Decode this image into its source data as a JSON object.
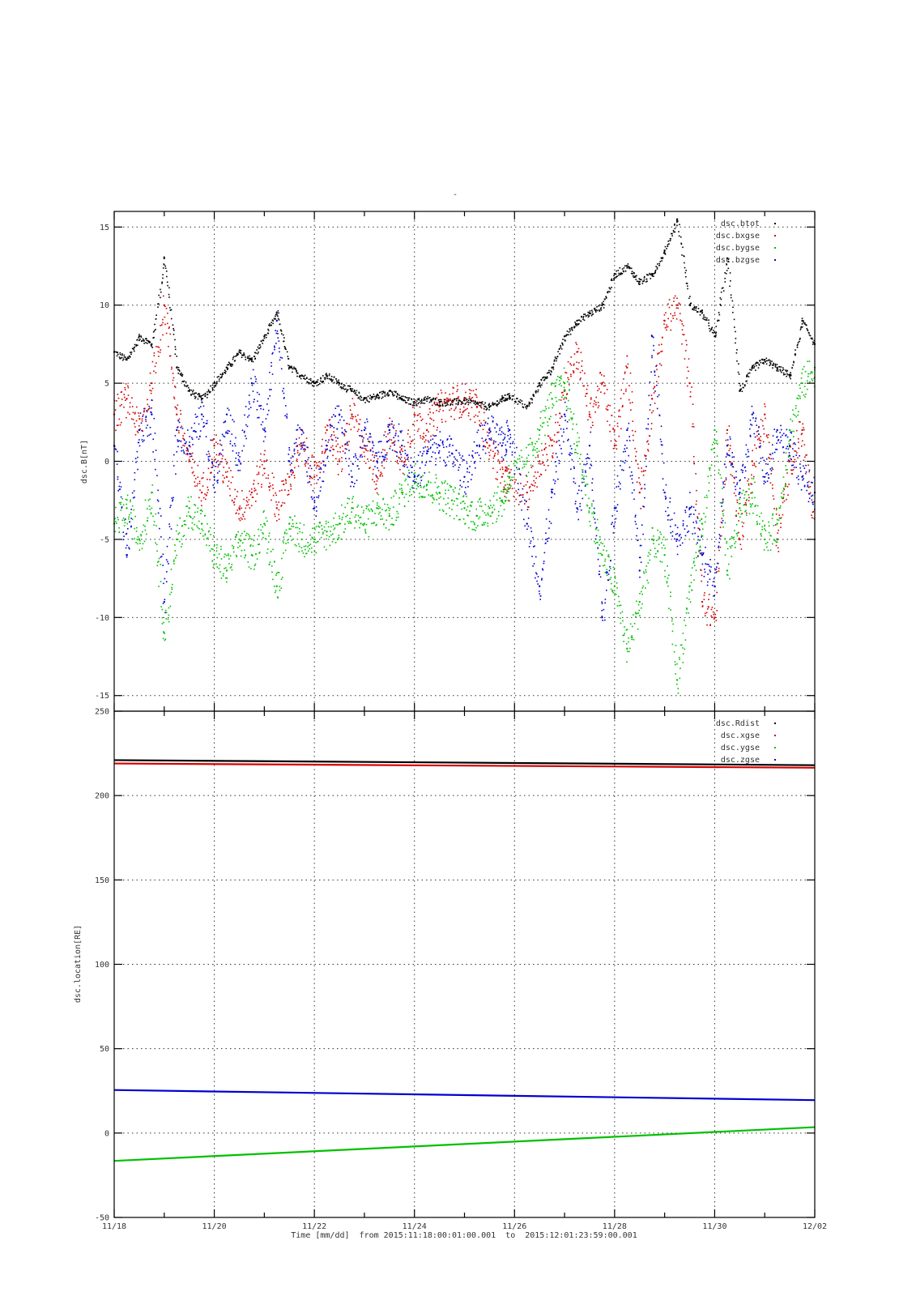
{
  "top_mark": "-",
  "chart_data": [
    {
      "type": "scatter",
      "title": "",
      "xlabel": "",
      "ylabel": "dsc.B[nT]",
      "xlim": [
        0,
        14
      ],
      "ylim": [
        -16,
        16
      ],
      "yticks": [
        15,
        10,
        5,
        0,
        -5,
        -10,
        -15
      ],
      "grid": true,
      "legend_position": "top-right",
      "series": [
        {
          "name": "dsc.btot",
          "color": "#000000",
          "x": [
            0,
            0.25,
            0.5,
            0.75,
            1.0,
            1.25,
            1.5,
            1.75,
            2.0,
            2.25,
            2.5,
            2.75,
            3.0,
            3.25,
            3.5,
            3.75,
            4.0,
            4.25,
            4.5,
            4.75,
            5.0,
            5.25,
            5.5,
            5.75,
            6.0,
            6.25,
            6.5,
            6.75,
            7.0,
            7.25,
            7.5,
            7.75,
            7.9,
            8.25,
            8.5,
            8.75,
            9.0,
            9.25,
            9.5,
            9.75,
            10.0,
            10.25,
            10.5,
            10.75,
            11.0,
            11.25,
            11.5,
            11.75,
            12.0,
            12.25,
            12.5,
            12.75,
            13.0,
            13.25,
            13.5,
            13.75,
            14.0
          ],
          "y": [
            7,
            6.5,
            8,
            7.5,
            13,
            6,
            4.5,
            4,
            5,
            6,
            7,
            6.5,
            8,
            9.5,
            6,
            5.5,
            5,
            5.5,
            5,
            4.5,
            4,
            4.2,
            4.5,
            4,
            3.8,
            4,
            3.8,
            3.8,
            3.9,
            3.7,
            3.5,
            4,
            4.2,
            3.5,
            5,
            6,
            8,
            9,
            9.5,
            10,
            12,
            12.5,
            11.5,
            12,
            13.5,
            15.5,
            10,
            9.5,
            8,
            13,
            4.5,
            6,
            6.5,
            6,
            5.5,
            9,
            7.5
          ]
        },
        {
          "name": "dsc.bxgse",
          "color": "#d40000",
          "x": [
            0,
            0.25,
            0.5,
            0.75,
            1.0,
            1.25,
            1.5,
            1.75,
            2.0,
            2.25,
            2.5,
            2.75,
            3.0,
            3.25,
            3.5,
            3.75,
            4.0,
            4.25,
            4.5,
            4.75,
            5.0,
            5.25,
            5.5,
            5.75,
            6.0,
            6.25,
            6.5,
            6.75,
            7.0,
            7.25,
            7.5,
            7.75,
            7.9,
            8.25,
            8.5,
            8.75,
            9.0,
            9.25,
            9.5,
            9.75,
            10.0,
            10.25,
            10.5,
            10.75,
            11.0,
            11.25,
            11.5,
            11.75,
            12.0,
            12.25,
            12.5,
            12.75,
            13.0,
            13.25,
            13.5,
            13.75,
            14.0
          ],
          "y": [
            3,
            4,
            2,
            5,
            10,
            3,
            0,
            -2,
            1,
            -1,
            -3,
            -2,
            0,
            -3,
            -1,
            1,
            -1,
            2,
            0,
            3,
            1,
            -1,
            2,
            0,
            3,
            2,
            3.5,
            3.8,
            4,
            3.5,
            1,
            -1,
            -1.5,
            -2,
            0,
            1,
            5,
            7,
            3,
            5,
            1,
            6,
            -2,
            4,
            9,
            10,
            5,
            -9,
            -10,
            2,
            -5,
            0,
            3,
            -5,
            0,
            2,
            -5
          ]
        },
        {
          "name": "dsc.bygse",
          "color": "#00c000",
          "x": [
            0,
            0.25,
            0.5,
            0.75,
            1.0,
            1.25,
            1.5,
            1.75,
            2.0,
            2.25,
            2.5,
            2.75,
            3.0,
            3.25,
            3.5,
            3.75,
            4.0,
            4.25,
            4.5,
            4.75,
            5.0,
            5.25,
            5.5,
            5.75,
            6.0,
            6.25,
            6.5,
            6.75,
            7.0,
            7.25,
            7.5,
            7.75,
            7.9,
            8.25,
            8.5,
            8.75,
            9.0,
            9.25,
            9.5,
            9.75,
            10.0,
            10.25,
            10.5,
            10.75,
            11.0,
            11.25,
            11.5,
            11.75,
            12.0,
            12.25,
            12.5,
            12.75,
            13.0,
            13.25,
            13.5,
            13.75,
            14.0
          ],
          "y": [
            -4,
            -3,
            -5,
            -2,
            -11,
            -5,
            -3,
            -4,
            -6,
            -7,
            -5,
            -6,
            -4,
            -8,
            -4,
            -5,
            -5,
            -4.5,
            -4,
            -3,
            -4,
            -3,
            -3.5,
            -2,
            -1,
            -1.5,
            -2,
            -2.5,
            -3,
            -3.5,
            -3,
            -2.5,
            -1,
            0,
            2,
            4,
            5,
            1,
            -3,
            -6,
            -8,
            -12,
            -9,
            -5,
            -6,
            -14,
            -8,
            -4,
            2,
            -7,
            -3,
            -2,
            -5,
            -4,
            2,
            5,
            6
          ]
        },
        {
          "name": "dsc.bzgse",
          "color": "#0000d0",
          "x": [
            0,
            0.25,
            0.5,
            0.75,
            1.0,
            1.25,
            1.5,
            1.75,
            2.0,
            2.25,
            2.5,
            2.75,
            3.0,
            3.25,
            3.5,
            3.75,
            4.0,
            4.25,
            4.5,
            4.75,
            5.0,
            5.25,
            5.5,
            5.75,
            6.0,
            6.25,
            6.5,
            6.75,
            7.0,
            7.25,
            7.5,
            7.75,
            7.9,
            8.25,
            8.5,
            8.75,
            9.0,
            9.25,
            9.5,
            9.75,
            10.0,
            10.25,
            10.5,
            10.75,
            11.0,
            11.25,
            11.5,
            11.75,
            12.0,
            12.25,
            12.5,
            12.75,
            13.0,
            13.25,
            13.5,
            13.75,
            14.0
          ],
          "y": [
            1,
            -6,
            2,
            3,
            -9,
            2,
            1,
            3,
            -1,
            3,
            0,
            5,
            2,
            9,
            0,
            2,
            -3,
            1,
            3,
            -1,
            2,
            0,
            2,
            1,
            -1,
            0.5,
            1,
            0.5,
            -1,
            1,
            2,
            1,
            2,
            -4,
            -8,
            -2,
            3,
            -3,
            1,
            -10,
            -3,
            2,
            -7,
            8,
            -2,
            -5,
            -3,
            -6,
            -8,
            1,
            -2,
            3,
            -1,
            2,
            1,
            -1,
            -2
          ]
        }
      ]
    },
    {
      "type": "line",
      "title": "",
      "xlabel": "Time [mm/dd]  from 2015:11:18:00:01:00.001  to  2015:12:01:23:59:00.001",
      "ylabel": "dsc.location[RE]",
      "xlim": [
        0,
        14
      ],
      "ylim": [
        -50,
        250
      ],
      "xticks": [
        "11/18",
        "11/20",
        "11/22",
        "11/24",
        "11/26",
        "11/28",
        "11/30",
        "12/02"
      ],
      "yticks": [
        250,
        200,
        150,
        100,
        50,
        0,
        -50
      ],
      "grid": true,
      "legend_position": "top-right",
      "series": [
        {
          "name": "dsc.Rdist",
          "color": "#000000",
          "x": [
            0,
            14
          ],
          "y": [
            221,
            218
          ]
        },
        {
          "name": "dsc.xgse",
          "color": "#d40000",
          "x": [
            0,
            14
          ],
          "y": [
            219,
            216.5
          ]
        },
        {
          "name": "dsc.ygse",
          "color": "#00c000",
          "x": [
            0,
            14
          ],
          "y": [
            -16.5,
            3.5
          ]
        },
        {
          "name": "dsc.zgse",
          "color": "#0000d0",
          "x": [
            0,
            14
          ],
          "y": [
            25.5,
            19.5
          ]
        }
      ]
    }
  ]
}
